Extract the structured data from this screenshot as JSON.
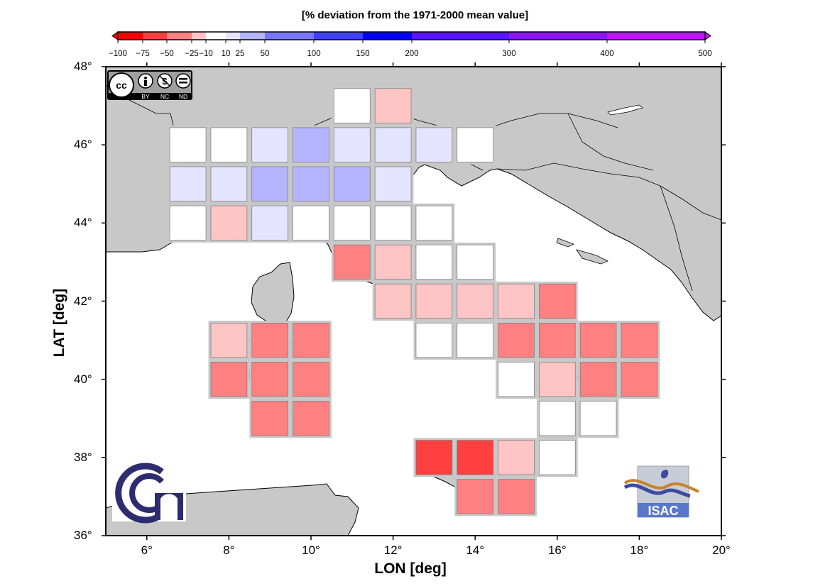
{
  "colorbar": {
    "title": "[% deviation from the 1971-2000 mean value]",
    "ticks": [
      "−100",
      "−75",
      "−50",
      "−25",
      "−10",
      "10",
      "25",
      "50",
      "100",
      "150",
      "200",
      "300",
      "400",
      "500"
    ],
    "tick_values": [
      -100,
      -75,
      -50,
      -25,
      -10,
      10,
      25,
      50,
      100,
      150,
      200,
      300,
      400,
      500
    ],
    "bins": [
      {
        "from": -100,
        "to": -75,
        "color": "#ff0000"
      },
      {
        "from": -75,
        "to": -50,
        "color": "#ff4040"
      },
      {
        "from": -50,
        "to": -25,
        "color": "#ff8080"
      },
      {
        "from": -25,
        "to": -10,
        "color": "#ffc4c4"
      },
      {
        "from": -10,
        "to": 10,
        "color": "#ffffff"
      },
      {
        "from": 10,
        "to": 25,
        "color": "#e4e4ff"
      },
      {
        "from": 25,
        "to": 50,
        "color": "#b4b4ff"
      },
      {
        "from": 50,
        "to": 100,
        "color": "#7878ff"
      },
      {
        "from": 100,
        "to": 150,
        "color": "#4040ff"
      },
      {
        "from": 150,
        "to": 200,
        "color": "#0000ff"
      },
      {
        "from": 200,
        "to": 300,
        "color": "#5a14ff"
      },
      {
        "from": 300,
        "to": 400,
        "color": "#8c14ff"
      },
      {
        "from": 400,
        "to": 500,
        "color": "#c014ff"
      }
    ]
  },
  "axes": {
    "xlabel": "LON [deg]",
    "ylabel": "LAT [deg]",
    "lon_range": [
      5,
      20
    ],
    "lat_range": [
      36,
      48
    ],
    "lon_ticks": [
      "6°",
      "8°",
      "10°",
      "12°",
      "14°",
      "16°",
      "18°",
      "20°"
    ],
    "lon_tick_values": [
      6,
      8,
      10,
      12,
      14,
      16,
      18,
      20
    ],
    "lat_ticks": [
      "36°",
      "38°",
      "40°",
      "42°",
      "44°",
      "46°",
      "48°"
    ],
    "lat_tick_values": [
      36,
      38,
      40,
      42,
      44,
      46,
      48
    ]
  },
  "colors": {
    "land": "#c8c8c8",
    "sea": "#ffffff",
    "coastline": "#000000"
  },
  "cells": [
    {
      "lon": 11,
      "lat": 47,
      "color": "#ffffff"
    },
    {
      "lon": 12,
      "lat": 47,
      "color": "#ffc4c4"
    },
    {
      "lon": 7,
      "lat": 46,
      "color": "#ffffff"
    },
    {
      "lon": 8,
      "lat": 46,
      "color": "#ffffff"
    },
    {
      "lon": 9,
      "lat": 46,
      "color": "#e4e4ff"
    },
    {
      "lon": 10,
      "lat": 46,
      "color": "#b4b4ff"
    },
    {
      "lon": 11,
      "lat": 46,
      "color": "#e4e4ff"
    },
    {
      "lon": 12,
      "lat": 46,
      "color": "#e4e4ff"
    },
    {
      "lon": 13,
      "lat": 46,
      "color": "#e4e4ff"
    },
    {
      "lon": 14,
      "lat": 46,
      "color": "#ffffff"
    },
    {
      "lon": 7,
      "lat": 45,
      "color": "#e4e4ff"
    },
    {
      "lon": 8,
      "lat": 45,
      "color": "#e4e4ff"
    },
    {
      "lon": 9,
      "lat": 45,
      "color": "#b4b4ff"
    },
    {
      "lon": 10,
      "lat": 45,
      "color": "#b4b4ff"
    },
    {
      "lon": 11,
      "lat": 45,
      "color": "#b4b4ff"
    },
    {
      "lon": 12,
      "lat": 45,
      "color": "#e4e4ff"
    },
    {
      "lon": 7,
      "lat": 44,
      "color": "#ffffff"
    },
    {
      "lon": 8,
      "lat": 44,
      "color": "#ffc4c4"
    },
    {
      "lon": 9,
      "lat": 44,
      "color": "#e4e4ff"
    },
    {
      "lon": 10,
      "lat": 44,
      "color": "#ffffff"
    },
    {
      "lon": 11,
      "lat": 44,
      "color": "#ffffff"
    },
    {
      "lon": 12,
      "lat": 44,
      "color": "#ffffff"
    },
    {
      "lon": 13,
      "lat": 44,
      "color": "#ffffff"
    },
    {
      "lon": 11,
      "lat": 43,
      "color": "#ff8080"
    },
    {
      "lon": 12,
      "lat": 43,
      "color": "#ffc4c4"
    },
    {
      "lon": 13,
      "lat": 43,
      "color": "#ffffff"
    },
    {
      "lon": 14,
      "lat": 43,
      "color": "#ffffff"
    },
    {
      "lon": 12,
      "lat": 42,
      "color": "#ffc4c4"
    },
    {
      "lon": 13,
      "lat": 42,
      "color": "#ffc4c4"
    },
    {
      "lon": 14,
      "lat": 42,
      "color": "#ffc4c4"
    },
    {
      "lon": 15,
      "lat": 42,
      "color": "#ffc4c4"
    },
    {
      "lon": 16,
      "lat": 42,
      "color": "#ff8080"
    },
    {
      "lon": 8,
      "lat": 41,
      "color": "#ffc4c4"
    },
    {
      "lon": 9,
      "lat": 41,
      "color": "#ff8080"
    },
    {
      "lon": 10,
      "lat": 41,
      "color": "#ff8080"
    },
    {
      "lon": 13,
      "lat": 41,
      "color": "#ffffff"
    },
    {
      "lon": 14,
      "lat": 41,
      "color": "#ffffff"
    },
    {
      "lon": 15,
      "lat": 41,
      "color": "#ff8080"
    },
    {
      "lon": 16,
      "lat": 41,
      "color": "#ff8080"
    },
    {
      "lon": 17,
      "lat": 41,
      "color": "#ff8080"
    },
    {
      "lon": 18,
      "lat": 41,
      "color": "#ff8080"
    },
    {
      "lon": 8,
      "lat": 40,
      "color": "#ff8080"
    },
    {
      "lon": 9,
      "lat": 40,
      "color": "#ff8080"
    },
    {
      "lon": 10,
      "lat": 40,
      "color": "#ff8080"
    },
    {
      "lon": 15,
      "lat": 40,
      "color": "#ffffff"
    },
    {
      "lon": 16,
      "lat": 40,
      "color": "#ffc4c4"
    },
    {
      "lon": 17,
      "lat": 40,
      "color": "#ff8080"
    },
    {
      "lon": 18,
      "lat": 40,
      "color": "#ff8080"
    },
    {
      "lon": 9,
      "lat": 39,
      "color": "#ff8080"
    },
    {
      "lon": 10,
      "lat": 39,
      "color": "#ff8080"
    },
    {
      "lon": 16,
      "lat": 39,
      "color": "#ffffff"
    },
    {
      "lon": 17,
      "lat": 39,
      "color": "#ffffff"
    },
    {
      "lon": 13,
      "lat": 38,
      "color": "#ff4040"
    },
    {
      "lon": 14,
      "lat": 38,
      "color": "#ff4040"
    },
    {
      "lon": 15,
      "lat": 38,
      "color": "#ffc4c4"
    },
    {
      "lon": 16,
      "lat": 38,
      "color": "#ffffff"
    },
    {
      "lon": 14,
      "lat": 37,
      "color": "#ff8080"
    },
    {
      "lon": 15,
      "lat": 37,
      "color": "#ff8080"
    }
  ],
  "logos": {
    "license": {
      "labels": [
        "BY",
        "NC",
        "ND"
      ],
      "badge": "cc"
    },
    "cnr": {
      "name": "cnr-logo"
    },
    "isac": {
      "text": "ISAC"
    }
  }
}
